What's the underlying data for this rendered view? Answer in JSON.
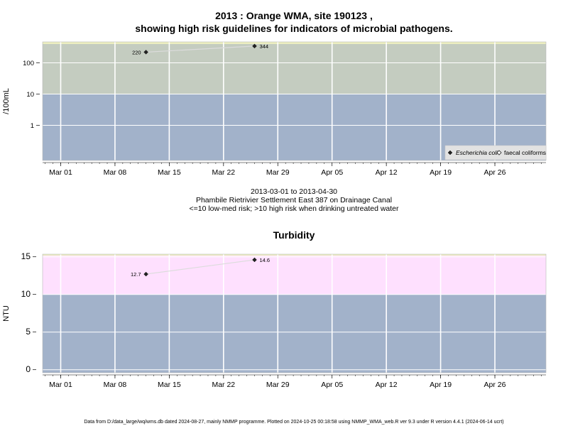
{
  "title_line1": "2013 : Orange WMA, site 190123 ,",
  "title_line2": "showing high risk guidelines for indicators of microbial pathogens.",
  "subtitle_lines": [
    "2013-03-01 to 2013-04-30",
    "Phambile Rietrivier Settlement East 387 on Drainage Canal",
    "<=10 low-med risk; >10 high risk when drinking untreated water"
  ],
  "footer": "Data from D:/data_large/wq/wms.db dated 2024-08-27, mainly NMMP programme. Plotted on 2024-10-25 00:18:58 using NMMP_WMA_web.R ver 9.3 under R version 4.4.1 (2024-06-14 ucrt)",
  "colors": {
    "low_risk": "#a2b2ca",
    "high_risk_microbial": "#c4ccc0",
    "high_risk_turbidity": "#fee0fe",
    "top_strip": "#eceec0",
    "grid": "#ffffff",
    "series_line": "#dcdcdc",
    "marker": "#222222"
  },
  "chart_data": [
    {
      "type": "scatter",
      "ylabel": "/100mL",
      "y_scale": "log",
      "y_ticks": [
        1,
        10,
        100
      ],
      "y_tick_labels": [
        "1",
        "10",
        "100"
      ],
      "threshold": 10,
      "x_tick_labels": [
        "Mar 01",
        "Mar 08",
        "Mar 15",
        "Mar 22",
        "Mar 29",
        "Apr 05",
        "Apr 12",
        "Apr 19",
        "Apr 26"
      ],
      "x_ticks": [
        "2013-03-01",
        "2013-03-08",
        "2013-03-15",
        "2013-03-22",
        "2013-03-29",
        "2013-04-05",
        "2013-04-12",
        "2013-04-19",
        "2013-04-26"
      ],
      "legend_position": "bottom-right",
      "series": [
        {
          "name": "Escherichia coli",
          "marker": "filled-diamond",
          "points": [
            {
              "x": "2013-03-12",
              "y": 220,
              "label": "220"
            },
            {
              "x": "2013-03-26",
              "y": 344,
              "label": "344"
            }
          ]
        },
        {
          "name": "faecal coliforms",
          "marker": "open-diamond",
          "points": []
        }
      ]
    },
    {
      "type": "scatter",
      "title": "Turbidity",
      "ylabel": "NTU",
      "y_scale": "linear",
      "y_ticks": [
        0,
        5,
        10,
        15
      ],
      "y_tick_labels": [
        "0",
        "5",
        "10",
        "15"
      ],
      "threshold": 10,
      "x_tick_labels": [
        "Mar 01",
        "Mar 08",
        "Mar 15",
        "Mar 22",
        "Mar 29",
        "Apr 05",
        "Apr 12",
        "Apr 19",
        "Apr 26"
      ],
      "x_ticks": [
        "2013-03-01",
        "2013-03-08",
        "2013-03-15",
        "2013-03-22",
        "2013-03-29",
        "2013-04-05",
        "2013-04-12",
        "2013-04-19",
        "2013-04-26"
      ],
      "series": [
        {
          "name": "",
          "marker": "filled-diamond",
          "points": [
            {
              "x": "2013-03-12",
              "y": 12.7,
              "label": "12.7"
            },
            {
              "x": "2013-03-26",
              "y": 14.6,
              "label": "14.6"
            }
          ]
        }
      ]
    }
  ]
}
